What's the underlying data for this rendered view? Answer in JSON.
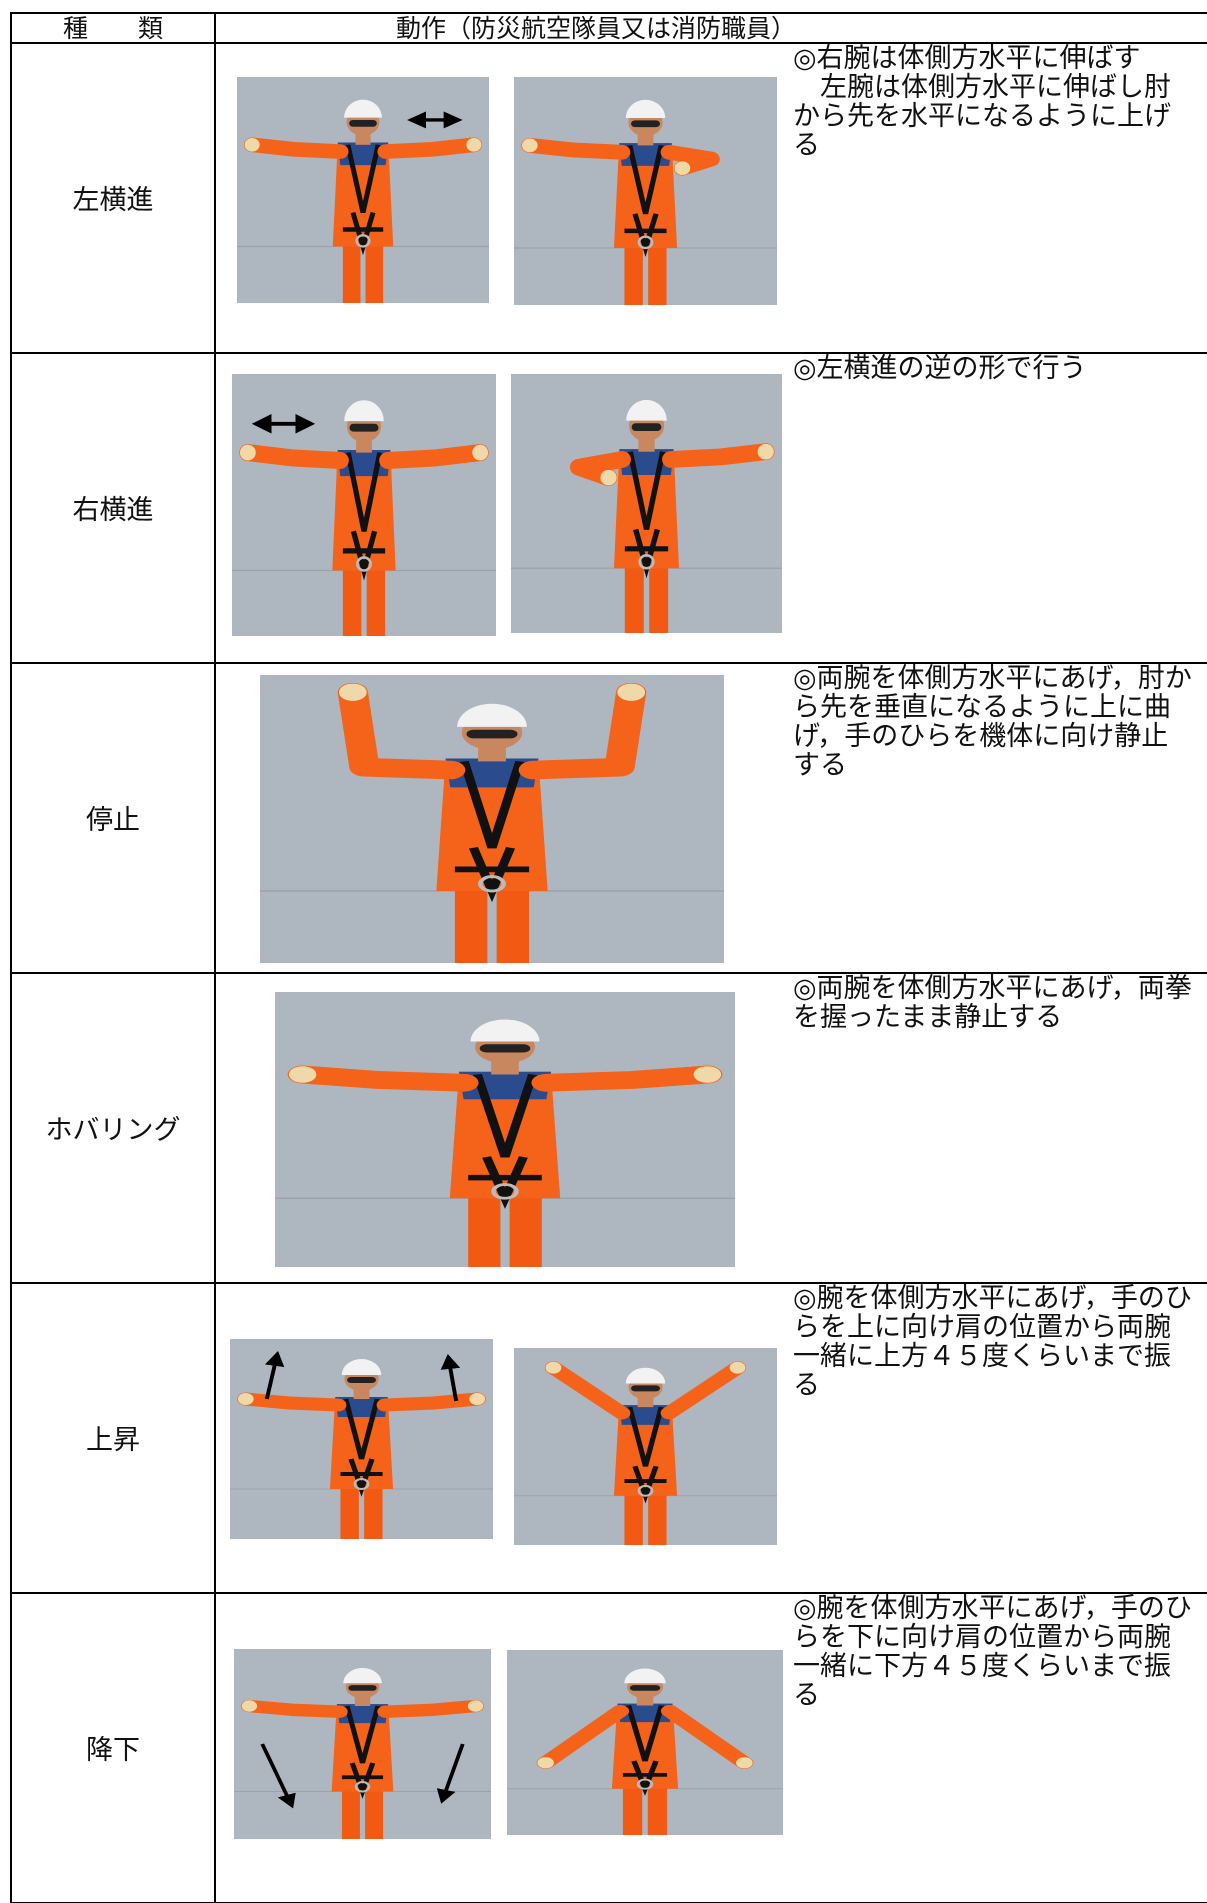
{
  "header": {
    "type": "種　　類",
    "action": "動作（防災航空隊員又は消防職員）"
  },
  "rows": [
    {
      "type": "左横進",
      "description": [
        "◎右腕は体側方水平に伸ばす",
        "　左腕は体側方水平に伸ばし肘から先を水平になるように上げる"
      ]
    },
    {
      "type": "右横進",
      "description": [
        "◎左横進の逆の形で行う"
      ]
    },
    {
      "type": "停止",
      "description": [
        "◎両腕を体側方水平にあげ，肘から先を垂直になるように上に曲げ，手のひらを機体に向け静止する"
      ]
    },
    {
      "type": "ホバリング",
      "description": [
        "◎両腕を体側方水平にあげ，両拳を握ったまま静止する"
      ]
    },
    {
      "type": "上昇",
      "description": [
        "◎腕を体側方水平にあげ，手のひらを上に向け肩の位置から両腕一緒に上方４５度くらいまで振る"
      ]
    },
    {
      "type": "降下",
      "description": [
        "◎腕を体側方水平にあげ，手のひらを下に向け肩の位置から両腕一緒に下方４５度くらいまで振る"
      ]
    }
  ]
}
